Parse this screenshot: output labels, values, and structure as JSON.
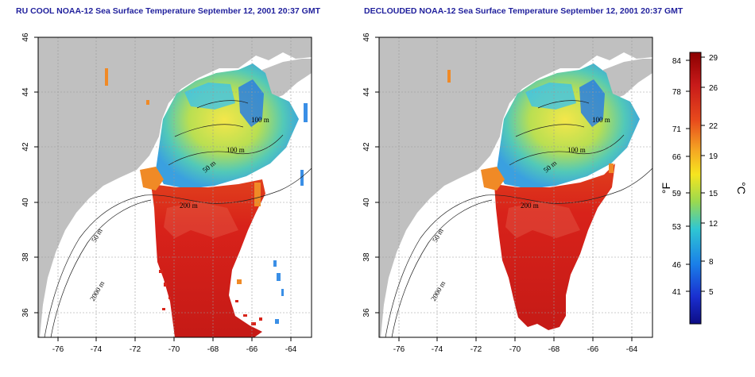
{
  "titles": {
    "left": "RU COOL NOAA-12 Sea Surface Temperature September 12, 2001 20:37 GMT",
    "right": "DECLOUDED NOAA-12 Sea Surface Temperature September 12, 2001 20:37 GMT"
  },
  "axes": {
    "lon_ticks": [
      "-76",
      "-74",
      "-72",
      "-70",
      "-68",
      "-66",
      "-64"
    ],
    "lat_ticks": [
      "36",
      "38",
      "40",
      "42",
      "44",
      "46"
    ]
  },
  "contour_labels": [
    "100 m",
    "100 m",
    "50 m",
    "200 m",
    "50 m",
    "2000 m"
  ],
  "colorbar": {
    "fahrenheit_ticks": [
      "84",
      "78",
      "71",
      "66",
      "59",
      "53",
      "46",
      "41"
    ],
    "celsius_ticks": [
      "29",
      "26",
      "22",
      "19",
      "15",
      "12",
      "8",
      "5"
    ],
    "fahrenheit_unit": "°F",
    "celsius_unit": "°C",
    "colors": [
      "#8b0000",
      "#cc1a1a",
      "#e84a1c",
      "#f5a623",
      "#f6e51f",
      "#9ad94f",
      "#2fc7d3",
      "#1a7fe8",
      "#1a2fd0",
      "#0d0d85"
    ]
  },
  "colors": {
    "land": "#c0c0c0",
    "title": "#1f1f9c",
    "warm": "#d9231d",
    "cool": "#3fa9e6"
  }
}
